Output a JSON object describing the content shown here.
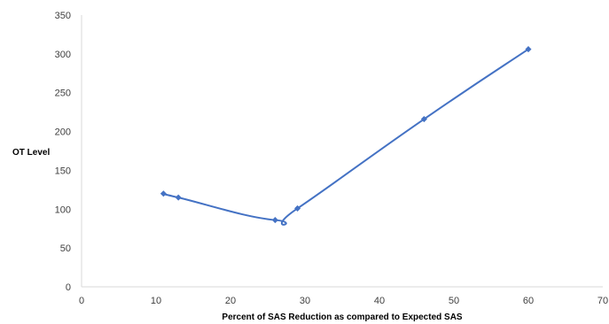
{
  "chart_data": {
    "type": "line",
    "title": "",
    "xlabel": "Percent of SAS Reduction as compared to Expected SAS",
    "ylabel": "OT Level",
    "xlim": [
      0,
      70
    ],
    "ylim": [
      0,
      350
    ],
    "x_ticks": [
      0,
      10,
      20,
      30,
      40,
      50,
      60,
      70
    ],
    "y_ticks": [
      0,
      50,
      100,
      150,
      200,
      250,
      300,
      350
    ],
    "grid": false,
    "legend": "none",
    "line_color": "#4472C4",
    "series": [
      {
        "points": [
          {
            "x": 11,
            "y": 120
          },
          {
            "x": 13,
            "y": 115
          },
          {
            "x": 26,
            "y": 86
          },
          {
            "x": 29,
            "y": 101
          },
          {
            "x": 46,
            "y": 216
          },
          {
            "x": 60,
            "y": 306
          }
        ]
      }
    ]
  }
}
